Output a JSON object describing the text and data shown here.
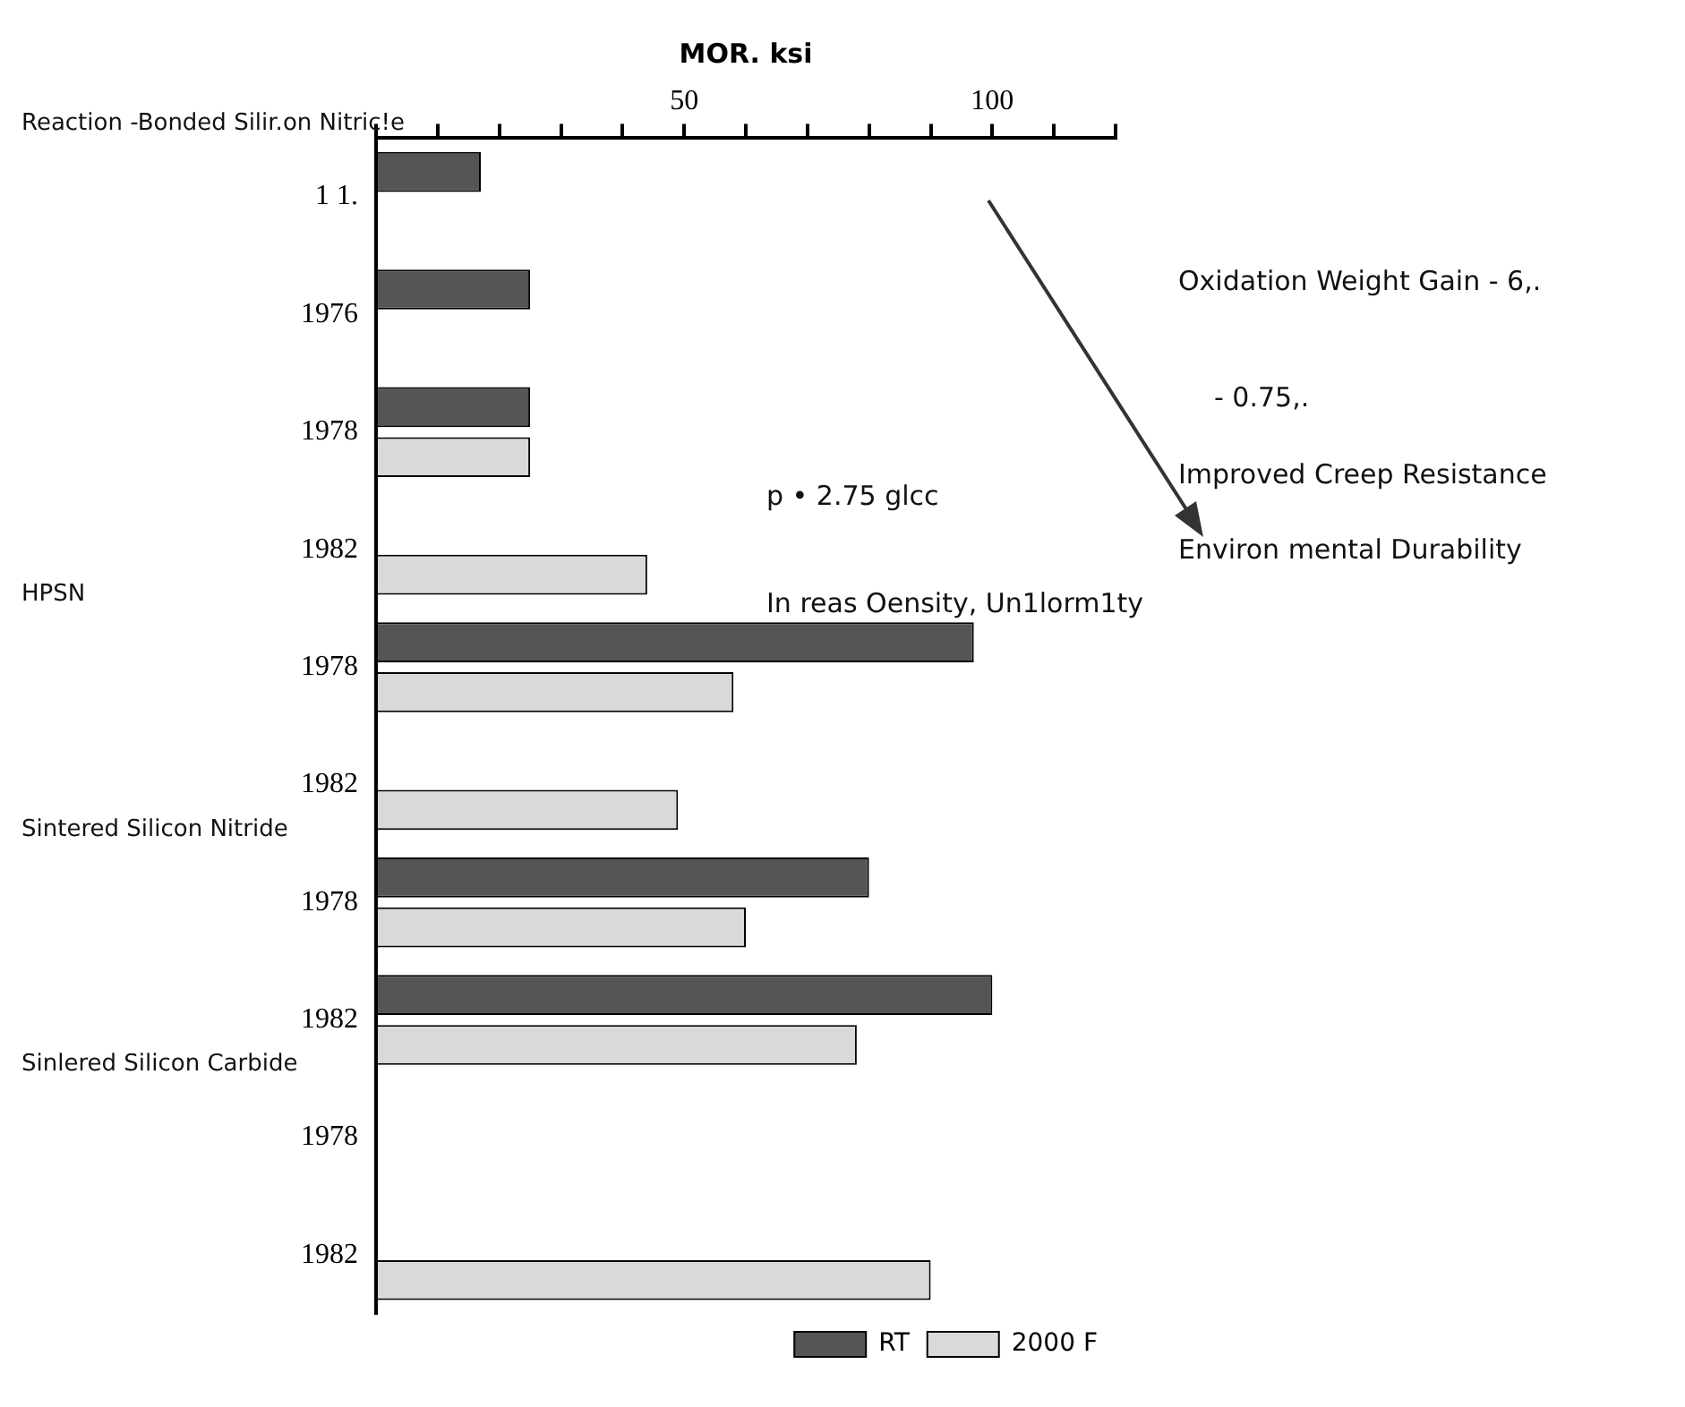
{
  "chart_data": {
    "type": "bar",
    "orientation": "horizontal",
    "xlabel": "MOR. ksi",
    "categories": [
      "1 1.",
      "1976",
      "1978",
      "1982",
      "1978",
      "1982",
      "1978",
      "1982",
      "1978",
      "1982"
    ],
    "series": [
      {
        "name": "RT",
        "color": "#555555",
        "values": [
          17,
          25,
          25,
          null,
          97,
          null,
          80,
          100,
          null,
          null
        ]
      },
      {
        "name": "2000 F",
        "color": "#d9d9d9",
        "values": [
          null,
          null,
          25,
          44,
          58,
          49,
          60,
          78,
          null,
          90
        ]
      }
    ],
    "xlim": [
      0,
      120
    ],
    "xticks": [
      {
        "value": 0,
        "label": null
      },
      {
        "value": 10,
        "label": null
      },
      {
        "value": 20,
        "label": null
      },
      {
        "value": 30,
        "label": null
      },
      {
        "value": 40,
        "label": null
      },
      50,
      {
        "value": 60,
        "label": null
      },
      {
        "value": 70,
        "label": null
      },
      {
        "value": 80,
        "label": null
      },
      {
        "value": 90,
        "label": null
      },
      100,
      {
        "value": 110,
        "label": null
      },
      {
        "value": 120,
        "label": null
      }
    ],
    "grid": false,
    "legend": "bottom right",
    "annotations": [
      "Reaction -Bonded Silir.on Nitric!e",
      "HPSN",
      "Sintered Silicon Nitride",
      "Sinlered Silicon Carbide",
      "p • 2.75 glcc",
      "In reas Oensity, Un1lorm1ty",
      "Oxidation Weight Gain - 6,.",
      "- 0.75,.",
      "Improved Creep Resistance",
      "Environ mental Durability"
    ]
  }
}
